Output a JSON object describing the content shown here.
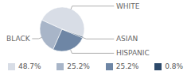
{
  "chart_data": {
    "type": "pie",
    "categories": [
      "WHITE",
      "BLACK",
      "HISPANIC",
      "ASIAN"
    ],
    "values": [
      48.7,
      25.2,
      25.2,
      0.8
    ],
    "value_labels": [
      "48.7%",
      "25.2%",
      "25.2%",
      "0.8%"
    ],
    "colors": [
      "#d8dde6",
      "#a8b5c8",
      "#6e86a5",
      "#2d4a6b"
    ],
    "legend": "bottom"
  }
}
